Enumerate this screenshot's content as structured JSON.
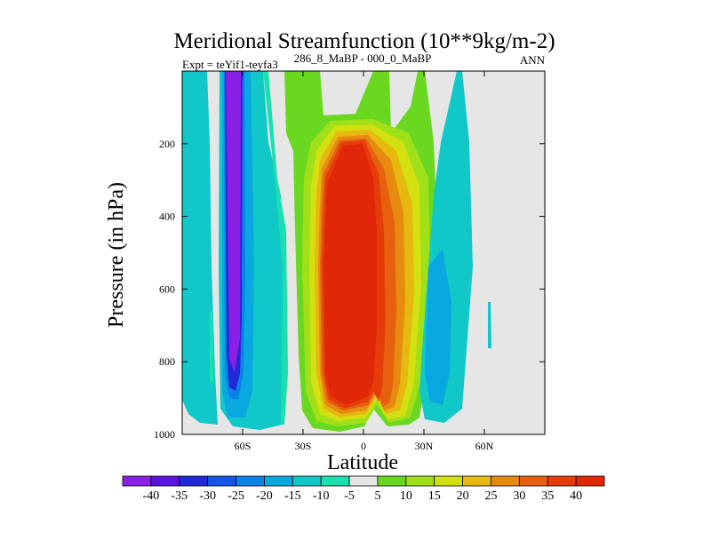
{
  "chart_data": {
    "type": "contour",
    "title": "Meridional Streamfunction (10**9kg/m-2)",
    "subtitle_left": "Expt = teYif1-teyfa3",
    "subtitle_center": "286_8_MaBP - 000_0_MaBP",
    "subtitle_right": "ANN",
    "xlabel": "Latitude",
    "ylabel": "Pressure (in hPa)",
    "xlim": [
      -90,
      90
    ],
    "ylim": [
      1000,
      0
    ],
    "x_ticks": [
      {
        "value": -60,
        "label": "60S"
      },
      {
        "value": -30,
        "label": "30S"
      },
      {
        "value": 0,
        "label": "0"
      },
      {
        "value": 30,
        "label": "30N"
      },
      {
        "value": 60,
        "label": "60N"
      }
    ],
    "y_ticks": [
      {
        "value": 200,
        "label": "200"
      },
      {
        "value": 400,
        "label": "400"
      },
      {
        "value": 600,
        "label": "600"
      },
      {
        "value": 800,
        "label": "800"
      },
      {
        "value": 1000,
        "label": "1000"
      }
    ],
    "colorbar": {
      "levels": [
        "-40",
        "-35",
        "-30",
        "-25",
        "-20",
        "-15",
        "-10",
        "-5",
        "5",
        "10",
        "15",
        "20",
        "25",
        "30",
        "35",
        "40"
      ],
      "colors": [
        "#8a1fe6",
        "#5a14e0",
        "#2028d8",
        "#1454e6",
        "#0a82e8",
        "#0aa8e0",
        "#10c8c8",
        "#1ae0b0",
        "#e6e6e6",
        "#6ad820",
        "#a0e018",
        "#d4e010",
        "#e6b810",
        "#e68a10",
        "#e66010",
        "#e63c0a",
        "#e02808"
      ]
    },
    "features": [
      {
        "name": "southern-weak-negative",
        "lat_range": [
          -88,
          -75
        ],
        "p_range": [
          80,
          980
        ],
        "value": -12
      },
      {
        "name": "southern-strong-negative-column",
        "lat_range": [
          -66,
          -58
        ],
        "p_range": [
          0,
          910
        ],
        "value": -40
      },
      {
        "name": "southern-moderate-negative",
        "lat_range": [
          -72,
          -45
        ],
        "p_range": [
          0,
          960
        ],
        "value": -15
      },
      {
        "name": "tropical-positive-cell",
        "lat_range": [
          -18,
          22
        ],
        "p_range": [
          170,
          990
        ],
        "value": 40
      },
      {
        "name": "northern-positive-extension",
        "lat_range": [
          5,
          35
        ],
        "p_range": [
          150,
          980
        ],
        "value": 15
      },
      {
        "name": "northern-negative-cell",
        "lat_range": [
          30,
          45
        ],
        "p_range": [
          250,
          960
        ],
        "value": -12
      }
    ]
  }
}
